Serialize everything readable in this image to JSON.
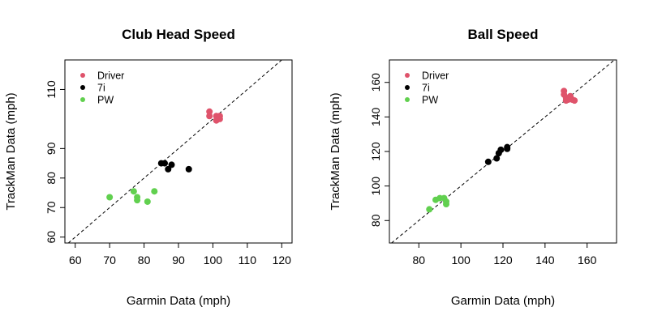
{
  "colors": {
    "Driver": "#DF536B",
    "7i": "#000000",
    "PW": "#61D04F"
  },
  "chart_data": [
    {
      "type": "scatter",
      "title": "Club Head Speed",
      "xlabel": "Garmin Data (mph)",
      "ylabel": "TrackMan Data (mph)",
      "xlim": [
        57,
        123
      ],
      "ylim": [
        58,
        120
      ],
      "xticks": [
        60,
        70,
        80,
        90,
        100,
        110,
        120
      ],
      "yticks": [
        60,
        70,
        80,
        90,
        110
      ],
      "reference_line": "y = x (dashed)",
      "legend_position": "top-left",
      "series": [
        {
          "name": "Driver",
          "color": "#DF536B",
          "points": [
            [
              99,
              102.5
            ],
            [
              99,
              101
            ],
            [
              101,
              101
            ],
            [
              101,
              99.5
            ],
            [
              102,
              100
            ],
            [
              102,
              101
            ]
          ]
        },
        {
          "name": "7i",
          "color": "#000000",
          "points": [
            [
              85,
              85
            ],
            [
              86,
              85
            ],
            [
              87,
              83
            ],
            [
              88,
              84.5
            ],
            [
              93,
              83
            ]
          ]
        },
        {
          "name": "PW",
          "color": "#61D04F",
          "points": [
            [
              70,
              73.5
            ],
            [
              77,
              75.5
            ],
            [
              78,
              73.5
            ],
            [
              78,
              72.5
            ],
            [
              81,
              72
            ],
            [
              83,
              75.5
            ]
          ]
        }
      ]
    },
    {
      "type": "scatter",
      "title": "Ball Speed",
      "xlabel": "Garmin Data (mph)",
      "ylabel": "TrackMan Data (mph)",
      "xlim": [
        66,
        174
      ],
      "ylim": [
        67,
        173
      ],
      "xticks": [
        80,
        100,
        120,
        140,
        160
      ],
      "yticks": [
        80,
        100,
        120,
        140,
        160
      ],
      "reference_line": "y = x (dashed)",
      "legend_position": "top-left",
      "series": [
        {
          "name": "Driver",
          "color": "#DF536B",
          "points": [
            [
              149,
              155
            ],
            [
              149,
              153
            ],
            [
              150,
              151
            ],
            [
              151,
              150
            ],
            [
              152,
              152
            ],
            [
              153,
              150
            ],
            [
              154,
              149.5
            ],
            [
              150,
              149.5
            ]
          ]
        },
        {
          "name": "7i",
          "color": "#000000",
          "points": [
            [
              113,
              114
            ],
            [
              117,
              116
            ],
            [
              118,
              119
            ],
            [
              119,
              121
            ],
            [
              122,
              122.5
            ],
            [
              122,
              121.5
            ]
          ]
        },
        {
          "name": "PW",
          "color": "#61D04F",
          "points": [
            [
              85,
              86.5
            ],
            [
              88,
              92
            ],
            [
              90,
              93
            ],
            [
              92,
              93
            ],
            [
              93,
              89.5
            ],
            [
              93,
              91
            ]
          ]
        }
      ]
    }
  ]
}
